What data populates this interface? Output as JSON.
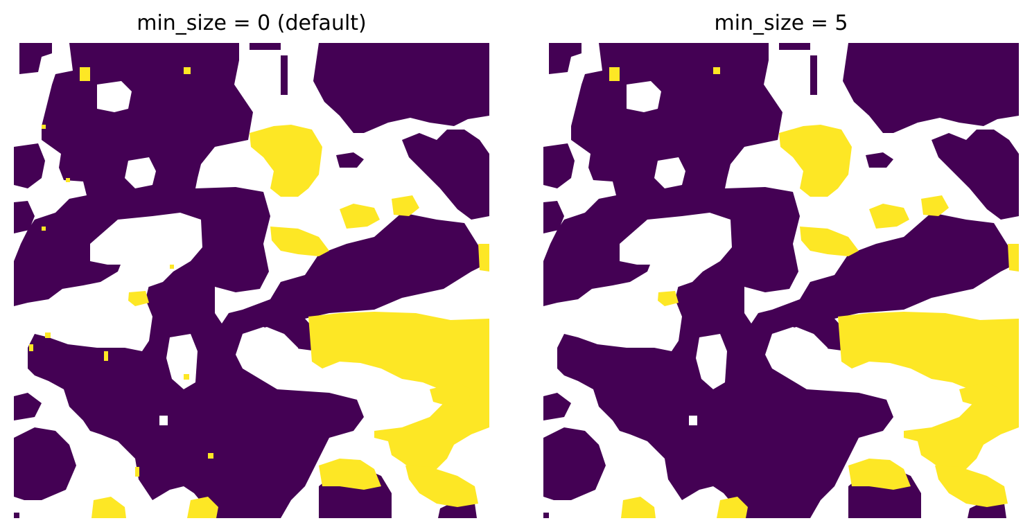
{
  "figure": {
    "colors": {
      "background": "#ffffff",
      "low_class": "#440154",
      "high_class": "#fde725"
    },
    "icons": [
      "none"
    ]
  },
  "chart_data": [
    {
      "type": "heatmap",
      "title": "min_size = 0 (default)",
      "grid": false,
      "axes_visible": false,
      "colormap": "viridis",
      "legend": "none"
    },
    {
      "type": "heatmap",
      "title": "min_size = 5",
      "grid": false,
      "axes_visible": false,
      "colormap": "viridis",
      "legend": "none"
    }
  ]
}
